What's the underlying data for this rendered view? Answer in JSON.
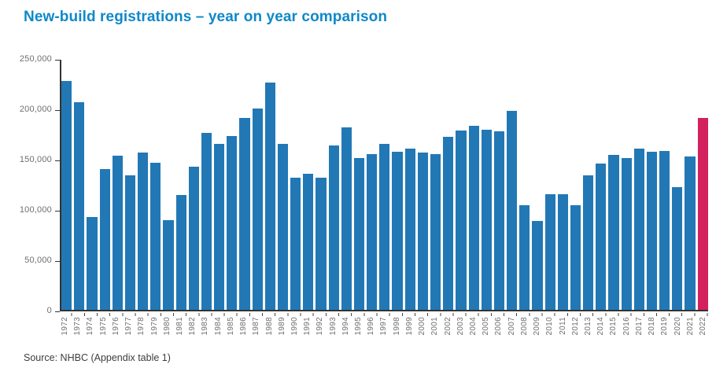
{
  "page": {
    "title": "New-build registrations – year on year comparison",
    "source": "Source: NHBC (Appendix table 1)"
  },
  "colors": {
    "title_blue": "#0f88c9",
    "bar_blue": "#2278b5",
    "highlight_red": "#d5205e",
    "axis": "#333333",
    "tick_label_gray": "#6f6f6f"
  },
  "chart_data": {
    "type": "bar",
    "title": "New-build registrations – year on year comparison",
    "xlabel": "",
    "ylabel": "",
    "ylim": [
      0,
      250000
    ],
    "y_tick_values": [
      250000,
      200000,
      150000,
      100000,
      50000,
      0
    ],
    "y_tick_labels": [
      "250,000",
      "200,000",
      "150,000",
      "100,000",
      "50,000",
      "0"
    ],
    "grid": false,
    "legend": false,
    "bar_color": "#2278b5",
    "highlight_category": "2022",
    "highlight_color": "#d5205e",
    "source": "Source: NHBC (Appendix table 1)",
    "categories": [
      "1972",
      "1973",
      "1974",
      "1975",
      "1976",
      "1977",
      "1978",
      "1979",
      "1980",
      "1981",
      "1982",
      "1983",
      "1984",
      "1985",
      "1986",
      "1987",
      "1988",
      "1989",
      "1990",
      "1991",
      "1992",
      "1993",
      "1994",
      "1995",
      "1996",
      "1997",
      "1998",
      "1999",
      "2000",
      "2001",
      "2002",
      "2003",
      "2004",
      "2005",
      "2006",
      "2007",
      "2008",
      "2009",
      "2010",
      "2011",
      "2012",
      "2013",
      "2014",
      "2015",
      "2016",
      "2017",
      "2018",
      "2019",
      "2020",
      "2021",
      "2022"
    ],
    "values": [
      227000,
      206000,
      92000,
      140000,
      153000,
      134000,
      156000,
      146000,
      89000,
      114000,
      142000,
      176000,
      165000,
      173000,
      191000,
      200000,
      226000,
      165000,
      131000,
      135000,
      131000,
      163000,
      181000,
      151000,
      155000,
      165000,
      157000,
      160000,
      156000,
      155000,
      172000,
      178000,
      183000,
      179000,
      177000,
      198000,
      104000,
      88000,
      115000,
      115000,
      104000,
      134000,
      145000,
      154000,
      151000,
      160000,
      157000,
      158000,
      122000,
      152000,
      191000
    ]
  }
}
